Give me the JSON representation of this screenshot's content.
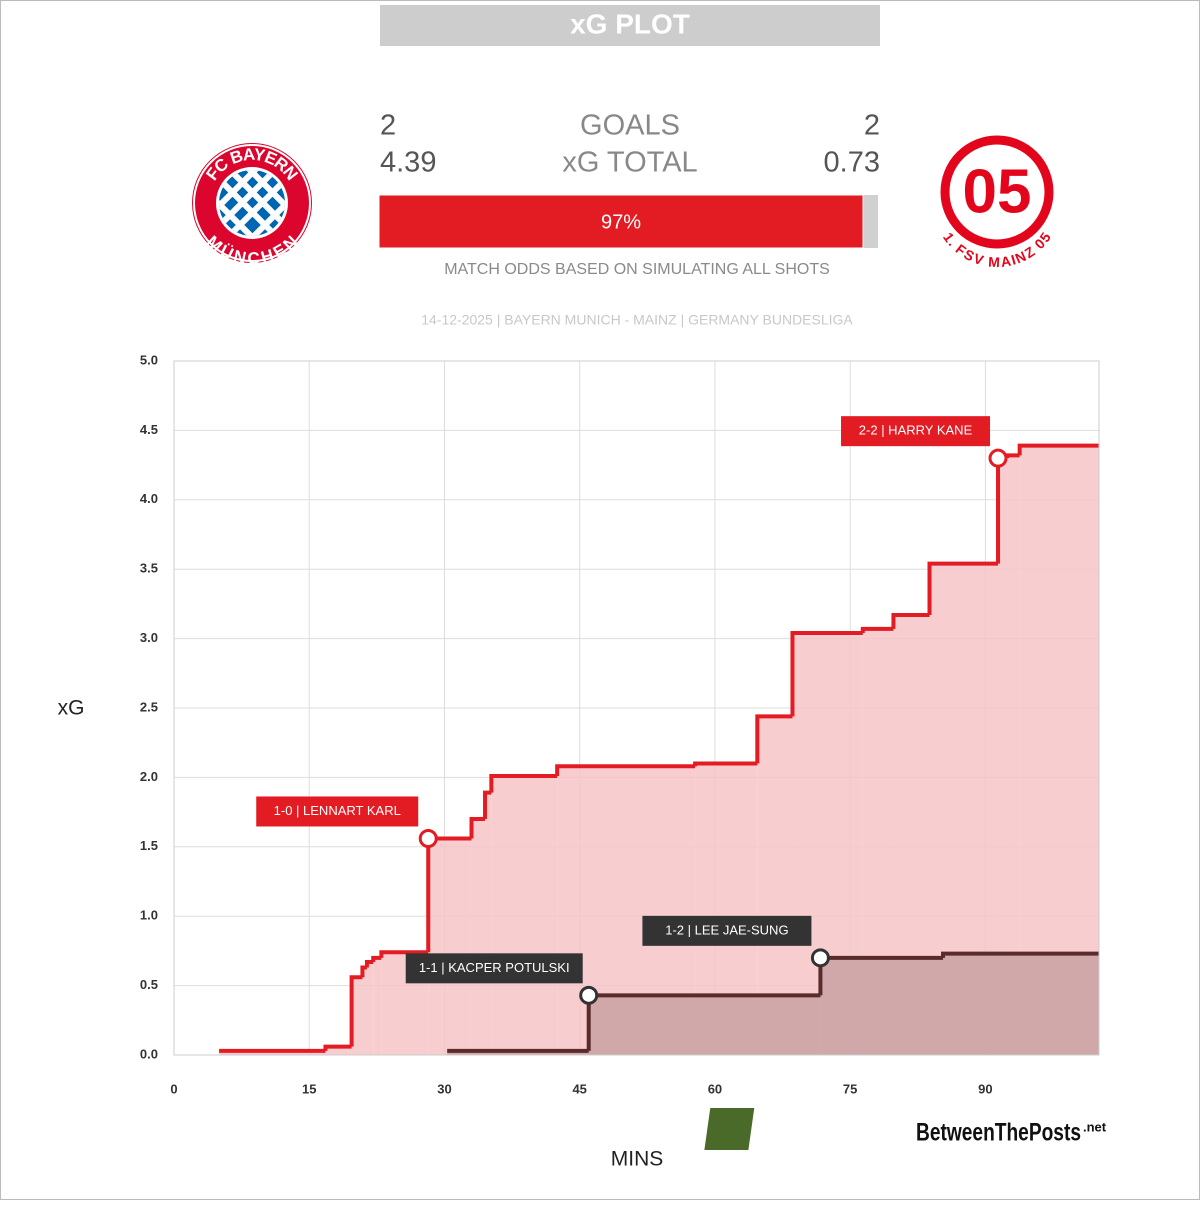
{
  "header": {
    "title": "xG PLOT",
    "goals_label": "GOALS",
    "xg_label": "xG TOTAL",
    "home": {
      "goals": 2,
      "xg": 4.39,
      "logo_top": "FC BAYERN",
      "logo_bottom": "MÜNCHEN"
    },
    "away": {
      "goals": 2,
      "xg": 0.73,
      "logo_monogram": "05",
      "logo_bottom": "1. FSV MAINZ 05"
    },
    "odds": {
      "value": 97,
      "label": "97%",
      "caption": "MATCH ODDS BASED ON SIMULATING ALL SHOTS"
    },
    "match_info": "14-12-2025 | BAYERN MUNICH - MAINZ | GERMANY BUNDESLIGA"
  },
  "watermark": {
    "logo": "BTP",
    "site": "BetweenThePosts",
    "tld": ".net"
  },
  "chart_data": {
    "type": "step",
    "x_label": "MINS",
    "y_label": "xG",
    "xlim": [
      0,
      102.6
    ],
    "ylim": [
      0,
      5
    ],
    "xticks": [
      0,
      15,
      30,
      45,
      60,
      75,
      90
    ],
    "yticks": [
      {
        "value": 0,
        "label": "0.0"
      },
      {
        "value": 0.5,
        "label": "0.5"
      },
      {
        "value": 1,
        "label": "1.0"
      },
      {
        "value": 1.5,
        "label": "1.5"
      },
      {
        "value": 2,
        "label": "2.0"
      },
      {
        "value": 2.5,
        "label": "2.5"
      },
      {
        "value": 3,
        "label": "3.0"
      },
      {
        "value": 3.5,
        "label": "3.5"
      },
      {
        "value": 4,
        "label": "4.0"
      },
      {
        "value": 4.5,
        "label": "4.5"
      },
      {
        "value": 5,
        "label": "5.0"
      }
    ],
    "grid": true,
    "series": [
      {
        "color": "#e31b23",
        "fill": "#f6c4c7",
        "x": [
          5.0,
          16.8,
          19.7,
          20.9,
          21.4,
          22.1,
          23.0,
          28.2,
          33.0,
          34.5,
          35.2,
          42.5,
          57.8,
          64.7,
          68.6,
          76.4,
          79.8,
          83.8,
          91.4,
          92.4,
          93.8,
          102.6
        ],
        "values": [
          0.03,
          0.06,
          0.56,
          0.63,
          0.67,
          0.7,
          0.74,
          1.56,
          1.7,
          1.89,
          2.01,
          2.08,
          2.1,
          2.44,
          3.04,
          3.07,
          3.17,
          3.54,
          4.3,
          4.32,
          4.39,
          4.39
        ]
      },
      {
        "color": "#5a2b2b",
        "fill": "#c9a1a3",
        "x": [
          30.3,
          46.0,
          71.7,
          85.3,
          102.6
        ],
        "values": [
          0.03,
          0.43,
          0.7,
          0.73,
          0.73
        ]
      }
    ],
    "annotations": [
      {
        "x": 28.2,
        "y": 1.56,
        "text": "1-0 | LENNART KARL",
        "color": "#e31b23"
      },
      {
        "x": 46.0,
        "y": 0.43,
        "text": "1-1 | KACPER POTULSKI",
        "color": "#333333"
      },
      {
        "x": 71.7,
        "y": 0.7,
        "text": "1-2 | LEE JAE-SUNG",
        "color": "#333333"
      },
      {
        "x": 91.4,
        "y": 4.3,
        "text": "2-2 | HARRY KANE",
        "color": "#e31b23"
      }
    ]
  }
}
